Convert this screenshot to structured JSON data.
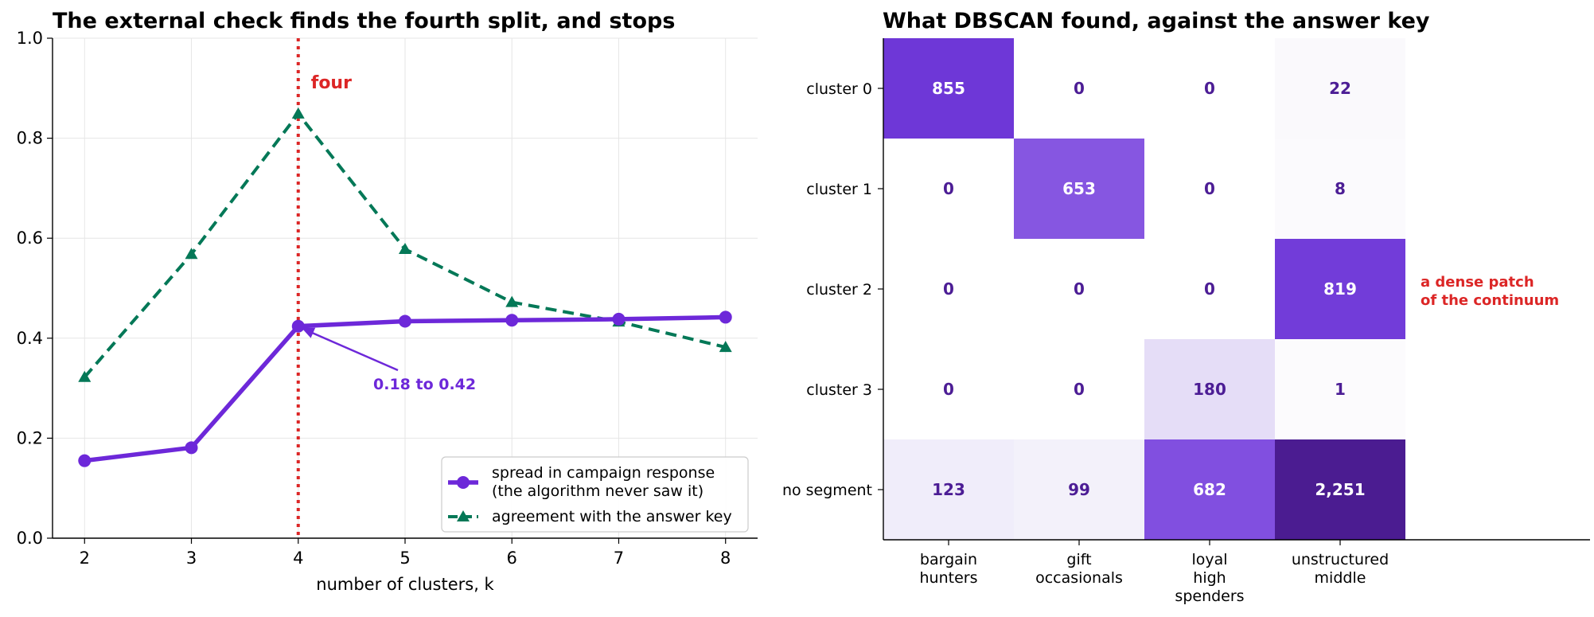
{
  "chart_data": [
    {
      "type": "line",
      "title": "The external check finds the fourth split, and stops",
      "xlabel": "number of clusters, k",
      "ylabel": "",
      "x": [
        2,
        3,
        4,
        5,
        6,
        7,
        8
      ],
      "xlim": [
        1.7,
        8.3
      ],
      "ylim": [
        0,
        1
      ],
      "yticks": [
        "0.0",
        "0.2",
        "0.4",
        "0.6",
        "0.8",
        "1.0"
      ],
      "xticks": [
        "2",
        "3",
        "4",
        "5",
        "6",
        "7",
        "8"
      ],
      "grid": true,
      "legend_position": "bottom-right",
      "series": [
        {
          "name": "spread in campaign response\n(the algorithm never saw it)",
          "values": [
            0.155,
            0.181,
            0.424,
            0.434,
            0.436,
            0.438,
            0.442
          ],
          "color": "#6d28d9",
          "marker": "circle",
          "style": "solid"
        },
        {
          "name": "agreement with the answer key",
          "values": [
            0.322,
            0.568,
            0.849,
            0.578,
            0.472,
            0.433,
            0.382
          ],
          "color": "#047857",
          "marker": "triangle",
          "style": "dashed"
        }
      ],
      "vline": {
        "x": 4,
        "color": "#dc2626",
        "label": "four"
      },
      "annotation": {
        "text": "0.18 to 0.42",
        "points_to": [
          4,
          0.424
        ],
        "color": "#6d28d9"
      }
    },
    {
      "type": "heatmap",
      "title": "What DBSCAN found, against the answer key",
      "rows": [
        "cluster 0",
        "cluster 1",
        "cluster 2",
        "cluster 3",
        "no segment"
      ],
      "columns": [
        [
          "bargain",
          "hunters"
        ],
        [
          "gift",
          "occasionals"
        ],
        [
          "loyal",
          "high",
          "spenders"
        ],
        [
          "unstructured",
          "middle"
        ]
      ],
      "values": [
        [
          855,
          0,
          0,
          22
        ],
        [
          0,
          653,
          0,
          8
        ],
        [
          0,
          0,
          0,
          819
        ],
        [
          0,
          0,
          180,
          1
        ],
        [
          123,
          99,
          682,
          2251
        ]
      ],
      "labels": [
        [
          "855",
          "0",
          "0",
          "22"
        ],
        [
          "0",
          "653",
          "0",
          "8"
        ],
        [
          "0",
          "0",
          "0",
          "819"
        ],
        [
          "0",
          "0",
          "180",
          "1"
        ],
        [
          "123",
          "99",
          "682",
          "2,251"
        ]
      ],
      "colormap": "Purples",
      "annotation": {
        "text": [
          "a dense patch",
          "of the continuum"
        ],
        "row": "cluster 2",
        "color": "#dc2626"
      }
    }
  ]
}
